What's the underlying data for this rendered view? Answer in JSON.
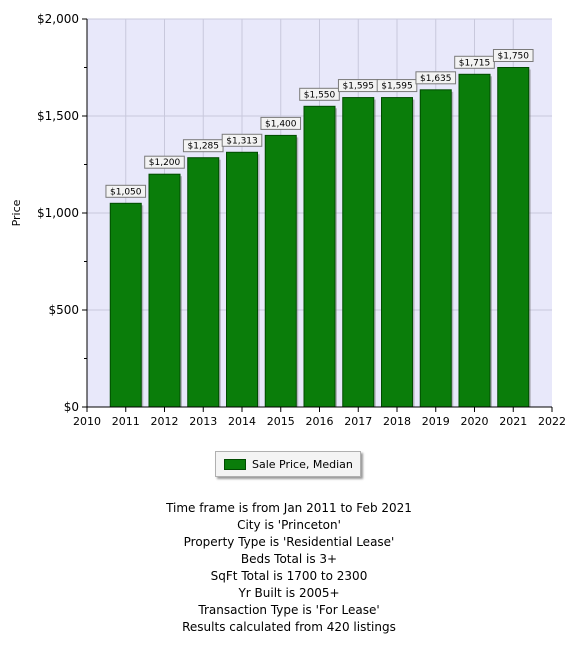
{
  "chart_data": {
    "type": "bar",
    "ylabel": "Price",
    "xlabel": "",
    "x": [
      2011,
      2012,
      2013,
      2014,
      2015,
      2016,
      2017,
      2018,
      2019,
      2020,
      2021
    ],
    "values": [
      1050,
      1200,
      1285,
      1313,
      1400,
      1550,
      1595,
      1595,
      1635,
      1715,
      1750
    ],
    "data_labels": [
      "$1,050",
      "$1,200",
      "$1,285",
      "$1,313",
      "$1,400",
      "$1,550",
      "$1,595",
      "$1,595",
      "$1,635",
      "$1,715",
      "$1,750"
    ],
    "xlim": [
      2010,
      2022
    ],
    "x_ticks": [
      "2010",
      "2011",
      "2012",
      "2013",
      "2014",
      "2015",
      "2016",
      "2017",
      "2018",
      "2019",
      "2020",
      "2021",
      "2022"
    ],
    "ylim": [
      0,
      2000
    ],
    "y_ticks": [
      0,
      500,
      1000,
      1500,
      2000
    ],
    "y_tick_labels": [
      "$0",
      "$500",
      "$1,000",
      "$1,500",
      "$2,000"
    ],
    "grid": true,
    "legend_position": "bottom-center",
    "series": [
      {
        "name": "Sale Price, Median",
        "color": "#0a7d0a"
      }
    ],
    "plot_background": "#e8e8fa"
  },
  "legend": {
    "label": "Sale Price, Median"
  },
  "notes": [
    "Time frame is from Jan 2011 to Feb 2021",
    "City is 'Princeton'",
    "Property Type is 'Residential Lease'",
    "Beds Total is 3+",
    "SqFt Total is 1700 to 2300",
    "Yr Built is 2005+",
    "Transaction Type is 'For Lease'",
    "Results calculated from 420 listings"
  ]
}
